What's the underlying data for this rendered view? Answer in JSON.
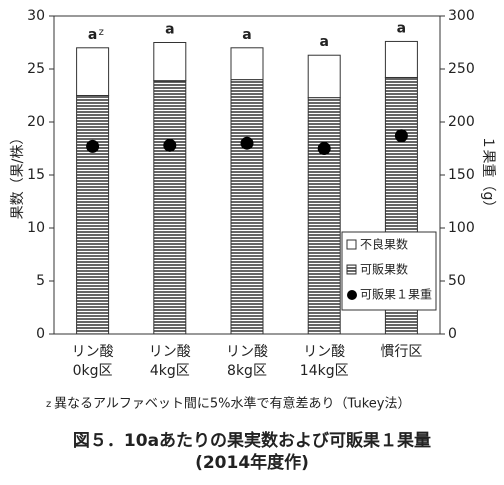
{
  "chart_data": {
    "type": "stacked-bar-dot",
    "title": "図５．10aあたりの果実数および可販果１果量",
    "subtitle": "(2014年度作)",
    "footnote_mark": "z",
    "footnote": "異なるアルファベット間に5%水準で有意差あり（Tukey法）",
    "ylabel": "果数（果/株）",
    "y2label": "１果重（g）",
    "categories": [
      [
        "リン酸",
        "0kg区"
      ],
      [
        "リン酸",
        "4kg区"
      ],
      [
        "リン酸",
        "8kg区"
      ],
      [
        "リン酸",
        "14kg区"
      ],
      [
        "慣行区"
      ]
    ],
    "significance_labels": [
      "a",
      "a",
      "a",
      "a",
      "a"
    ],
    "significance_note_mark": "z",
    "series": [
      {
        "name": "可販果数",
        "kind": "bar",
        "pattern": "horizontal-lines",
        "color": "#000000",
        "values": [
          22.5,
          23.9,
          24.0,
          22.3,
          24.2
        ]
      },
      {
        "name": "不良果数",
        "kind": "bar",
        "color": "#ffffff",
        "values": [
          4.5,
          3.6,
          3.0,
          4.0,
          3.4
        ]
      },
      {
        "name": "可販果１果重",
        "kind": "dot",
        "axis": "y2",
        "color": "#000000",
        "values": [
          177,
          178,
          180,
          175,
          187
        ]
      }
    ],
    "legend_order": [
      1,
      0,
      2
    ],
    "legend": "lower right",
    "ylim": [
      0,
      30
    ],
    "yticks": [
      0,
      5,
      10,
      15,
      20,
      25,
      30
    ],
    "y2lim": [
      0,
      300
    ],
    "y2ticks": [
      0,
      50,
      100,
      150,
      200,
      250,
      300
    ]
  }
}
